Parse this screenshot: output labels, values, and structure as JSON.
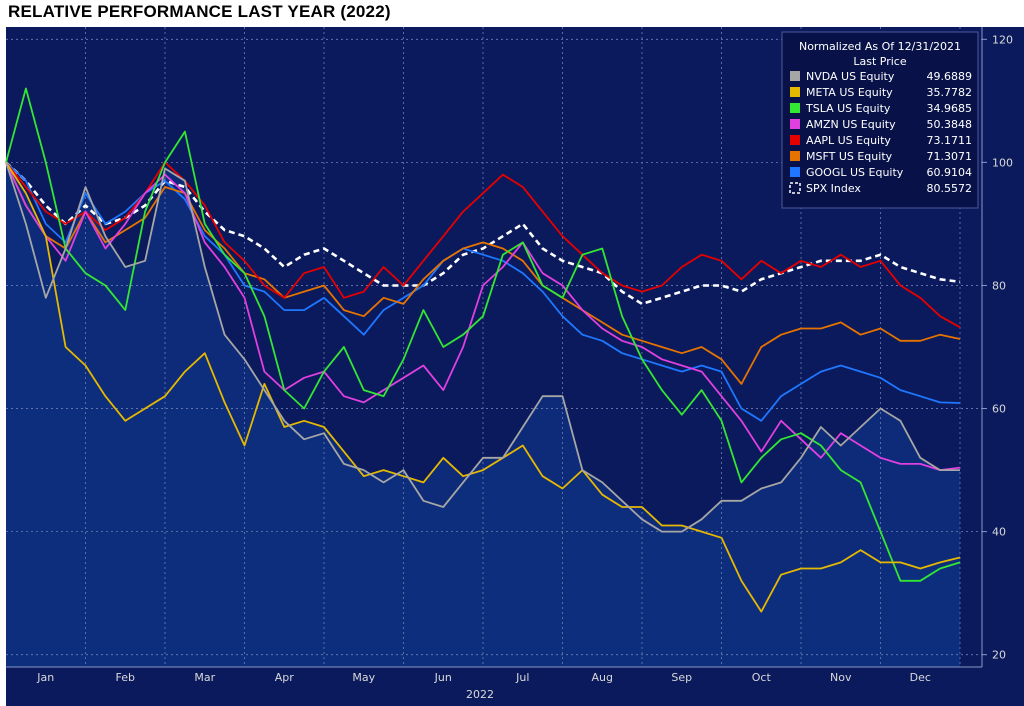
{
  "page_title": "RELATIVE PERFORMANCE LAST YEAR (2022)",
  "colors": {
    "background": "#0a1a5c",
    "area_fill": "#0e2f7e",
    "grid": "#6f7fb3",
    "axis_text": "#d9d9d9",
    "legend_bg": "#081248"
  },
  "chart_data": {
    "type": "line",
    "title": "RELATIVE PERFORMANCE LAST YEAR (2022)",
    "xlabel": "2022",
    "ylabel": "",
    "ylim": [
      18,
      122
    ],
    "yticks": [
      20,
      40,
      60,
      80,
      100,
      120
    ],
    "x_axis": "month index (0 = start of Jan 2022, 12 = end of Dec 2022)",
    "months": [
      "Jan",
      "Feb",
      "Mar",
      "Apr",
      "May",
      "Jun",
      "Jul",
      "Aug",
      "Sep",
      "Oct",
      "Nov",
      "Dec"
    ],
    "x_year_label": "2022",
    "grid": true,
    "legend_position": "top-right",
    "legend_header": [
      "Normalized As Of 12/31/2021",
      "Last Price"
    ],
    "x": [
      0,
      0.25,
      0.5,
      0.75,
      1,
      1.25,
      1.5,
      1.75,
      2,
      2.25,
      2.5,
      2.75,
      3,
      3.25,
      3.5,
      3.75,
      4,
      4.25,
      4.5,
      4.75,
      5,
      5.25,
      5.5,
      5.75,
      6,
      6.25,
      6.5,
      6.75,
      7,
      7.25,
      7.5,
      7.75,
      8,
      8.25,
      8.5,
      8.75,
      9,
      9.25,
      9.5,
      9.75,
      10,
      10.25,
      10.5,
      10.75,
      11,
      11.25,
      11.5,
      11.75,
      12
    ],
    "series": [
      {
        "name": "NVDA US Equity",
        "last_price": "49.6889",
        "color": "#a6a6a6",
        "style": "solid",
        "area": true,
        "values": [
          100,
          90,
          78,
          86,
          96,
          88,
          83,
          84,
          99,
          97,
          83,
          72,
          68,
          63,
          58,
          55,
          56,
          51,
          50,
          48,
          50,
          45,
          44,
          48,
          52,
          52,
          57,
          62,
          62,
          50,
          48,
          45,
          42,
          40,
          40,
          42,
          45,
          45,
          47,
          48,
          52,
          57,
          54,
          57,
          60,
          58,
          52,
          50,
          50
        ]
      },
      {
        "name": "META US Equity",
        "last_price": "35.7782",
        "color": "#e6b800",
        "style": "solid",
        "area": true,
        "values": [
          100,
          95,
          88,
          70,
          67,
          62,
          58,
          60,
          62,
          66,
          69,
          61,
          54,
          64,
          57,
          58,
          57,
          53,
          49,
          50,
          49,
          48,
          52,
          49,
          50,
          52,
          54,
          49,
          47,
          50,
          46,
          44,
          44,
          41,
          41,
          40,
          39,
          32,
          27,
          33,
          34,
          34,
          35,
          37,
          35,
          35,
          34,
          35,
          35.8
        ]
      },
      {
        "name": "TSLA US Equity",
        "last_price": "34.9685",
        "color": "#33e633",
        "style": "solid",
        "area": false,
        "values": [
          100,
          112,
          100,
          86,
          82,
          80,
          76,
          92,
          100,
          105,
          90,
          85,
          82,
          75,
          63,
          60,
          66,
          70,
          63,
          62,
          68,
          76,
          70,
          72,
          75,
          85,
          87,
          80,
          78,
          85,
          86,
          75,
          68,
          63,
          59,
          63,
          58,
          48,
          52,
          55,
          56,
          54,
          50,
          48,
          40,
          32,
          32,
          34,
          35
        ]
      },
      {
        "name": "AMZN US Equity",
        "last_price": "50.3848",
        "color": "#e040e0",
        "style": "solid",
        "area": false,
        "values": [
          100,
          93,
          88,
          84,
          92,
          86,
          90,
          95,
          98,
          95,
          87,
          83,
          78,
          66,
          63,
          65,
          66,
          62,
          61,
          63,
          65,
          67,
          63,
          70,
          80,
          83,
          87,
          82,
          80,
          76,
          73,
          71,
          70,
          68,
          67,
          66,
          62,
          58,
          53,
          58,
          55,
          52,
          56,
          54,
          52,
          51,
          51,
          50,
          50.4
        ]
      },
      {
        "name": "AAPL US Equity",
        "last_price": "73.1711",
        "color": "#e60000",
        "style": "solid",
        "area": false,
        "values": [
          100,
          96,
          92,
          90,
          92,
          89,
          91,
          95,
          100,
          97,
          93,
          87,
          84,
          80,
          78,
          82,
          83,
          78,
          79,
          83,
          80,
          84,
          88,
          92,
          95,
          98,
          96,
          92,
          88,
          85,
          82,
          80,
          79,
          80,
          83,
          85,
          84,
          81,
          84,
          82,
          84,
          83,
          85,
          83,
          84,
          80,
          78,
          75,
          73.2
        ]
      },
      {
        "name": "MSFT US Equity",
        "last_price": "71.3071",
        "color": "#e67300",
        "style": "solid",
        "area": false,
        "values": [
          100,
          93,
          88,
          86,
          92,
          87,
          89,
          91,
          96,
          95,
          89,
          86,
          82,
          81,
          78,
          79,
          80,
          76,
          75,
          78,
          77,
          81,
          84,
          86,
          87,
          86,
          84,
          80,
          78,
          76,
          74,
          72,
          71,
          70,
          69,
          70,
          68,
          64,
          70,
          72,
          73,
          73,
          74,
          72,
          73,
          71,
          71,
          72,
          71.3
        ]
      },
      {
        "name": "GOOGL US Equity",
        "last_price": "60.9104",
        "color": "#1f77ff",
        "style": "solid",
        "area": false,
        "values": [
          100,
          97,
          90,
          87,
          95,
          90,
          92,
          95,
          97,
          94,
          88,
          85,
          80,
          79,
          76,
          76,
          78,
          75,
          72,
          76,
          78,
          80,
          84,
          86,
          85,
          84,
          82,
          79,
          75,
          72,
          71,
          69,
          68,
          67,
          66,
          67,
          66,
          60,
          58,
          62,
          64,
          66,
          67,
          66,
          65,
          63,
          62,
          61,
          60.9
        ]
      },
      {
        "name": "SPX Index",
        "last_price": "80.5572",
        "color": "#ffffff",
        "style": "dashed",
        "area": false,
        "values": [
          100,
          97,
          93,
          90,
          93,
          90,
          91,
          93,
          97,
          96,
          92,
          89,
          88,
          86,
          83,
          85,
          86,
          84,
          82,
          80,
          80,
          80,
          82,
          85,
          86,
          88,
          90,
          86,
          84,
          83,
          82,
          79,
          77,
          78,
          79,
          80,
          80,
          79,
          81,
          82,
          83,
          84,
          84,
          84,
          85,
          83,
          82,
          81,
          80.6
        ]
      }
    ]
  }
}
